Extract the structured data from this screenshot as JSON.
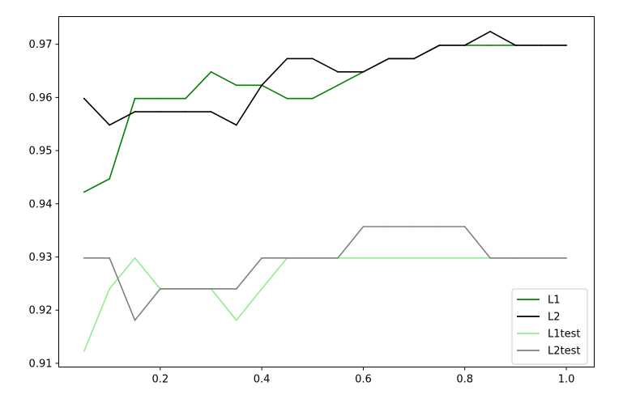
{
  "chart_data": {
    "type": "line",
    "title": "",
    "xlabel": "",
    "ylabel": "",
    "xlim": [
      0.0,
      1.055
    ],
    "ylim": [
      0.9093,
      0.9752
    ],
    "xticks": [
      {
        "value": 0.2,
        "label": "0.2"
      },
      {
        "value": 0.4,
        "label": "0.4"
      },
      {
        "value": 0.6,
        "label": "0.6"
      },
      {
        "value": 0.8,
        "label": "0.8"
      },
      {
        "value": 1.0,
        "label": "1.0"
      }
    ],
    "yticks": [
      {
        "value": 0.91,
        "label": "0.91"
      },
      {
        "value": 0.92,
        "label": "0.92"
      },
      {
        "value": 0.93,
        "label": "0.93"
      },
      {
        "value": 0.94,
        "label": "0.94"
      },
      {
        "value": 0.95,
        "label": "0.95"
      },
      {
        "value": 0.96,
        "label": "0.96"
      },
      {
        "value": 0.97,
        "label": "0.97"
      }
    ],
    "grid": false,
    "legend_position": "bottom-right",
    "x": [
      0.05,
      0.1,
      0.15,
      0.2,
      0.25,
      0.3,
      0.35,
      0.4,
      0.45,
      0.5,
      0.55,
      0.6,
      0.65,
      0.7,
      0.75,
      0.8,
      0.85,
      0.9,
      0.95,
      1.0
    ],
    "series": [
      {
        "name": "L1",
        "color": "#008000",
        "values": [
          0.9422,
          0.9447,
          0.9598,
          0.9598,
          0.9598,
          0.9648,
          0.9623,
          0.9623,
          0.9598,
          0.9598,
          0.9623,
          0.9648,
          0.9673,
          0.9673,
          0.9698,
          0.9698,
          0.9698,
          0.9698,
          0.9698,
          0.9698
        ]
      },
      {
        "name": "L2",
        "color": "#000000",
        "values": [
          0.9598,
          0.9548,
          0.9573,
          0.9573,
          0.9573,
          0.9573,
          0.9548,
          0.9623,
          0.9673,
          0.9673,
          0.9648,
          0.9648,
          0.9673,
          0.9673,
          0.9698,
          0.9698,
          0.9724,
          0.9698,
          0.9698,
          0.9698
        ]
      },
      {
        "name": "L1test",
        "color": "#90ee90",
        "values": [
          0.9123,
          0.924,
          0.9298,
          0.924,
          0.924,
          0.924,
          0.9181,
          0.924,
          0.9298,
          0.9298,
          0.9298,
          0.9298,
          0.9298,
          0.9298,
          0.9298,
          0.9298,
          0.9298,
          0.9298,
          0.9298,
          0.9298
        ]
      },
      {
        "name": "L2test",
        "color": "#808080",
        "values": [
          0.9298,
          0.9298,
          0.9181,
          0.924,
          0.924,
          0.924,
          0.924,
          0.9298,
          0.9298,
          0.9298,
          0.9298,
          0.9357,
          0.9357,
          0.9357,
          0.9357,
          0.9357,
          0.9298,
          0.9298,
          0.9298,
          0.9298
        ]
      }
    ]
  }
}
